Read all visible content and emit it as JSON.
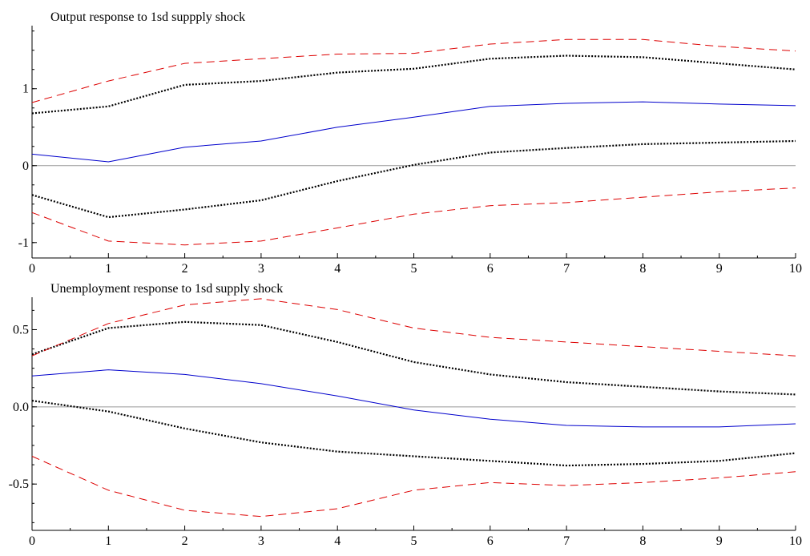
{
  "colors": {
    "median": "#0000cc",
    "band_68": "#000000",
    "band_95": "#dd0000",
    "zero_line": "#999999",
    "axis": "#000000"
  },
  "chart_data": [
    {
      "type": "line",
      "title": "Output response to 1sd suppply shock",
      "xlabel": "",
      "ylabel": "",
      "x": [
        0,
        1,
        2,
        3,
        4,
        5,
        6,
        7,
        8,
        9,
        10
      ],
      "xlim": [
        0,
        10
      ],
      "ylim": [
        -1.2,
        1.82
      ],
      "x_ticks": [
        "0",
        "1",
        "2",
        "3",
        "4",
        "5",
        "6",
        "7",
        "8",
        "9",
        "10"
      ],
      "y_ticks": [
        {
          "value": -1,
          "label": "-1"
        },
        {
          "value": 0,
          "label": "0"
        },
        {
          "value": 1,
          "label": "1"
        }
      ],
      "zero_line": true,
      "grid": false,
      "series": [
        {
          "role": "median",
          "style": "solid",
          "color": "#0000cc",
          "values": [
            0.15,
            0.05,
            0.24,
            0.32,
            0.5,
            0.63,
            0.77,
            0.81,
            0.83,
            0.8,
            0.78
          ]
        },
        {
          "role": "band_68_upper",
          "style": "dotted",
          "color": "#000000",
          "values": [
            0.68,
            0.77,
            1.05,
            1.1,
            1.21,
            1.26,
            1.39,
            1.43,
            1.41,
            1.33,
            1.25
          ]
        },
        {
          "role": "band_68_lower",
          "style": "dotted",
          "color": "#000000",
          "values": [
            -0.38,
            -0.67,
            -0.57,
            -0.45,
            -0.2,
            0.01,
            0.17,
            0.23,
            0.28,
            0.3,
            0.32
          ]
        },
        {
          "role": "band_95_upper",
          "style": "dashed",
          "color": "#dd0000",
          "values": [
            0.82,
            1.1,
            1.33,
            1.39,
            1.45,
            1.46,
            1.58,
            1.64,
            1.64,
            1.55,
            1.49
          ]
        },
        {
          "role": "band_95_lower",
          "style": "dashed",
          "color": "#dd0000",
          "values": [
            -0.61,
            -0.98,
            -1.03,
            -0.98,
            -0.81,
            -0.63,
            -0.52,
            -0.48,
            -0.41,
            -0.34,
            -0.29
          ]
        }
      ]
    },
    {
      "type": "line",
      "title": "Unemployment response to 1sd supply shock",
      "xlabel": "",
      "ylabel": "",
      "x": [
        0,
        1,
        2,
        3,
        4,
        5,
        6,
        7,
        8,
        9,
        10
      ],
      "xlim": [
        0,
        10
      ],
      "ylim": [
        -0.8,
        0.71
      ],
      "x_ticks": [
        "0",
        "1",
        "2",
        "3",
        "4",
        "5",
        "6",
        "7",
        "8",
        "9",
        "10"
      ],
      "y_ticks": [
        {
          "value": -0.5,
          "label": "-0.5"
        },
        {
          "value": 0,
          "label": "0.0"
        },
        {
          "value": 0.5,
          "label": "0.5"
        }
      ],
      "zero_line": true,
      "grid": false,
      "series": [
        {
          "role": "median",
          "style": "solid",
          "color": "#0000cc",
          "values": [
            0.2,
            0.24,
            0.21,
            0.15,
            0.07,
            -0.02,
            -0.08,
            -0.12,
            -0.13,
            -0.13,
            -0.11
          ]
        },
        {
          "role": "band_68_upper",
          "style": "dotted",
          "color": "#000000",
          "values": [
            0.34,
            0.51,
            0.55,
            0.53,
            0.42,
            0.29,
            0.21,
            0.16,
            0.13,
            0.1,
            0.08
          ]
        },
        {
          "role": "band_68_lower",
          "style": "dotted",
          "color": "#000000",
          "values": [
            0.04,
            -0.03,
            -0.14,
            -0.23,
            -0.29,
            -0.32,
            -0.35,
            -0.38,
            -0.37,
            -0.35,
            -0.3
          ]
        },
        {
          "role": "band_95_upper",
          "style": "dashed",
          "color": "#dd0000",
          "values": [
            0.33,
            0.54,
            0.66,
            0.7,
            0.63,
            0.51,
            0.45,
            0.42,
            0.39,
            0.36,
            0.33
          ]
        },
        {
          "role": "band_95_lower",
          "style": "dashed",
          "color": "#dd0000",
          "values": [
            -0.32,
            -0.54,
            -0.67,
            -0.71,
            -0.66,
            -0.54,
            -0.49,
            -0.51,
            -0.49,
            -0.46,
            -0.42
          ]
        }
      ]
    }
  ]
}
